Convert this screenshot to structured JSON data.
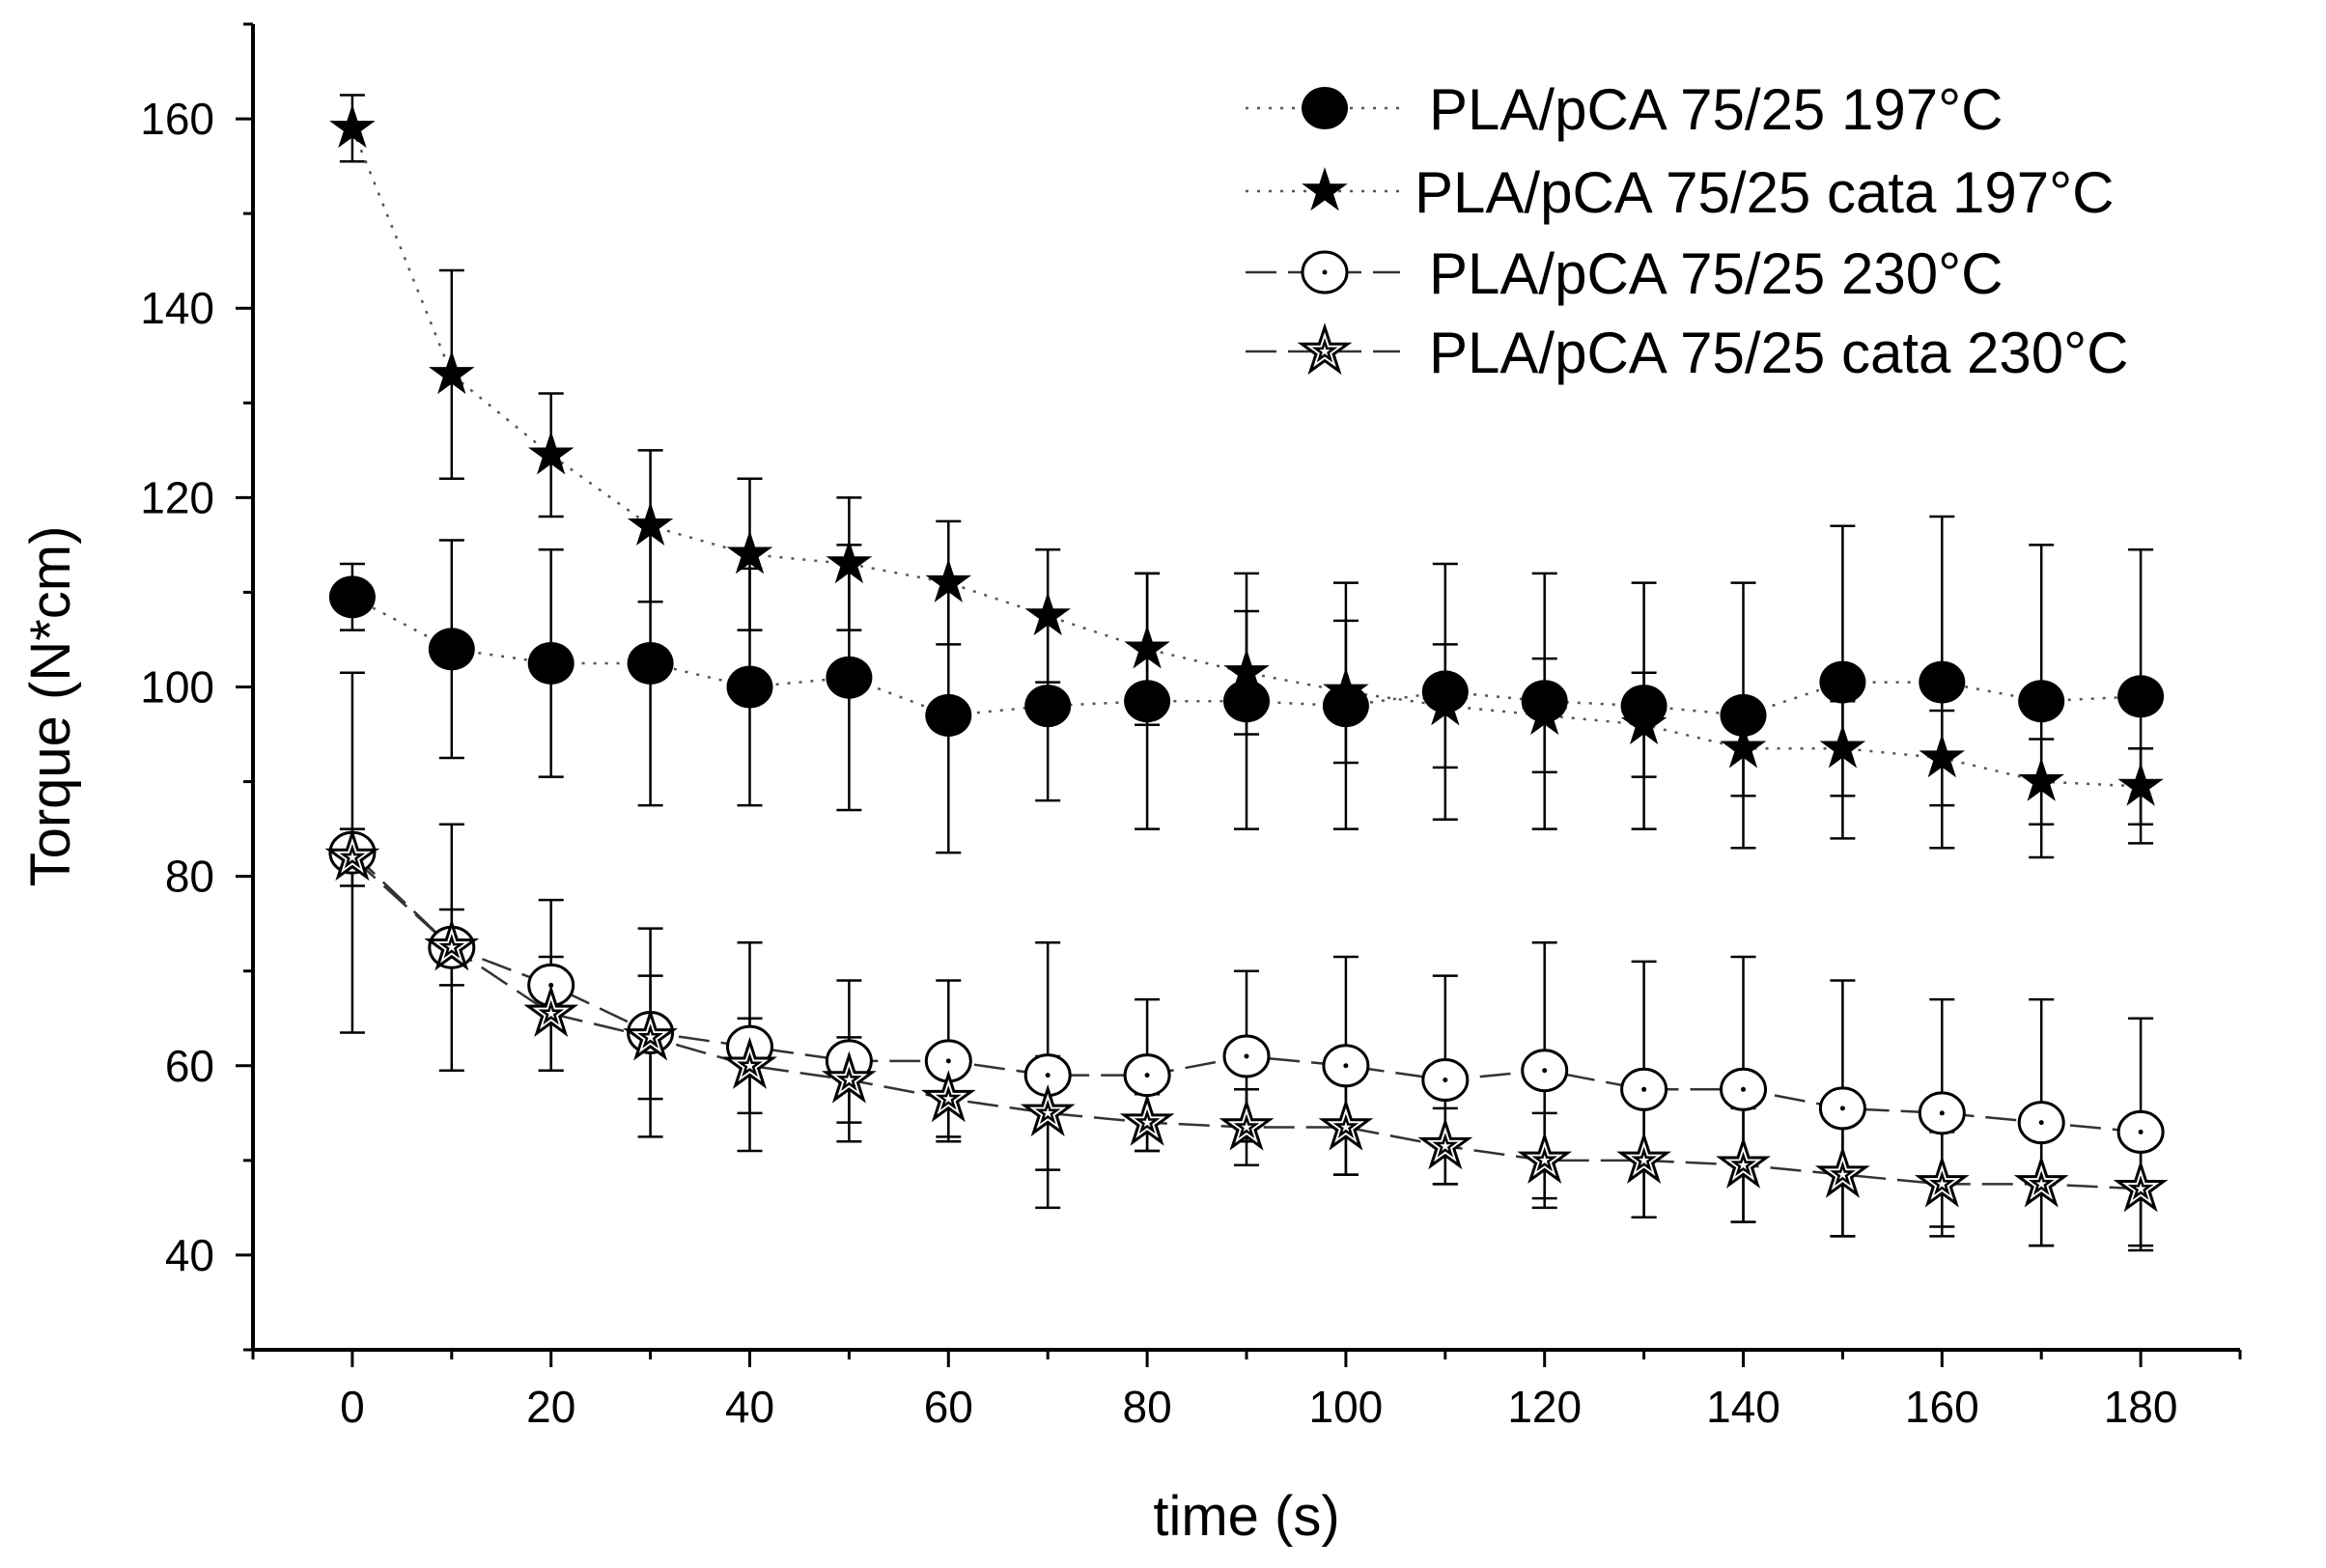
{
  "chart_data": {
    "type": "line",
    "xlabel": "time (s)",
    "ylabel": "Torque (N*cm)",
    "xlim": [
      -10,
      190
    ],
    "ylim": [
      30,
      170
    ],
    "xticks": [
      0,
      20,
      40,
      60,
      80,
      100,
      120,
      140,
      160,
      180
    ],
    "yticks": [
      40,
      60,
      80,
      100,
      120,
      140,
      160
    ],
    "x": [
      0,
      10,
      20,
      30,
      40,
      50,
      60,
      70,
      80,
      90,
      100,
      110,
      120,
      130,
      140,
      150,
      160,
      170,
      180
    ],
    "legend_position": "top-right",
    "series": [
      {
        "name": "PLA/pCA 75/25 197°C",
        "marker": "filled-circle",
        "line": "dotted",
        "values": [
          109.5,
          104,
          102.5,
          102.5,
          100,
          101,
          97,
          98,
          98.5,
          98.5,
          98,
          99.5,
          98.5,
          98,
          97,
          100.5,
          100.5,
          98.5,
          99
        ],
        "err": [
          3.5,
          11.5,
          12,
          15,
          12.5,
          14,
          14.5,
          10,
          13.5,
          13.5,
          13,
          13.5,
          13.5,
          13,
          14,
          16.5,
          17.5,
          16.5,
          15.5
        ]
      },
      {
        "name": "PLA/pCA 75/25 cata 197°C",
        "marker": "filled-star",
        "line": "dotted",
        "values": [
          159,
          133,
          124.5,
          117,
          114,
          113,
          111,
          107.5,
          104,
          101.5,
          99.5,
          98,
          97,
          96,
          93.5,
          93.5,
          92.5,
          90,
          89.5
        ],
        "err": [
          3.5,
          11,
          6.5,
          8,
          8,
          7,
          6.5,
          7,
          8,
          6.5,
          7.5,
          6.5,
          6,
          5.5,
          5,
          5,
          5,
          4.5,
          4
        ]
      },
      {
        "name": "PLA/pCA 75/25 230°C",
        "marker": "open-circle",
        "line": "dashed",
        "values": [
          82.5,
          72.5,
          68.5,
          63.5,
          62,
          60.5,
          60.5,
          59,
          59,
          61,
          60,
          58.5,
          59.5,
          57.5,
          57.5,
          55.5,
          55,
          54,
          53
        ],
        "err": [
          19,
          13,
          9,
          11,
          11,
          8.5,
          8.5,
          14,
          8,
          9,
          11.5,
          11,
          13.5,
          13.5,
          14,
          13.5,
          12,
          13,
          12
        ]
      },
      {
        "name": "PLA/pCA 75/25 cata 230°C",
        "marker": "open-star",
        "line": "dashed",
        "values": [
          82,
          72.5,
          65.5,
          63,
          60,
          58.5,
          56.5,
          55,
          54,
          53.5,
          53.5,
          51.5,
          50,
          50,
          49.5,
          48.5,
          47.5,
          47.5,
          47
        ],
        "err": [
          3,
          4,
          6,
          6.5,
          5,
          4.5,
          4,
          6,
          3,
          4,
          5,
          4,
          5,
          6,
          6,
          6.5,
          5.5,
          6.5,
          6.5
        ]
      }
    ]
  }
}
